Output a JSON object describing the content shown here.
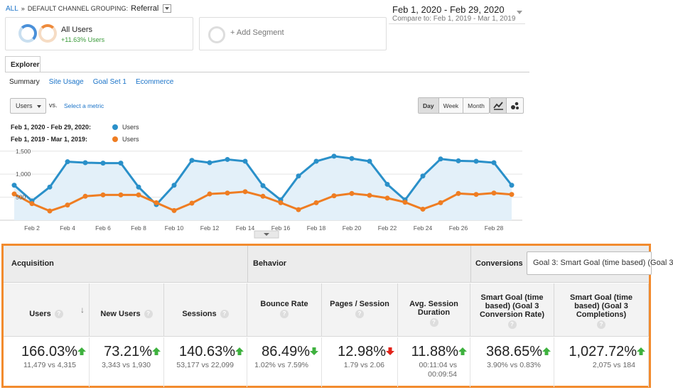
{
  "breadcrumb": {
    "root": "ALL",
    "separator": "»",
    "grouping": "DEFAULT CHANNEL GROUPING:",
    "value": "Referral"
  },
  "date_range": {
    "main": "Feb 1, 2020 - Feb 29, 2020",
    "compare": "Compare to: Feb 1, 2019 - Mar 1, 2019"
  },
  "segments": {
    "all_users": {
      "name": "All Users",
      "delta": "+11.63% Users"
    },
    "add_segment": "+ Add Segment"
  },
  "tabs": {
    "explorer": "Explorer"
  },
  "subnav": {
    "summary": "Summary",
    "site_usage": "Site Usage",
    "goal_set": "Goal Set 1",
    "ecommerce": "Ecommerce"
  },
  "chart_controls": {
    "metric": "Users",
    "vs": "vs.",
    "select_metric": "Select a metric",
    "period_buttons": [
      "Day",
      "Week",
      "Month"
    ],
    "selected_period": "Day"
  },
  "legend": [
    {
      "date": "Feb 1, 2020 - Feb 29, 2020:",
      "name": "Users",
      "color": "#2a90c9"
    },
    {
      "date": "Feb 1, 2019 - Mar 1, 2019:",
      "name": "Users",
      "color": "#ef7d22"
    }
  ],
  "chart_data": {
    "type": "line",
    "ylim": [
      0,
      1620
    ],
    "y_ticks": [
      "1,500",
      "1,000",
      "500"
    ],
    "y_tick_values": [
      1500,
      1000,
      500
    ],
    "x_tick_labels": [
      "Feb 2",
      "Feb 4",
      "Feb 6",
      "Feb 8",
      "Feb 10",
      "Feb 12",
      "Feb 14",
      "Feb 16",
      "Feb 18",
      "Feb 20",
      "Feb 22",
      "Feb 24",
      "Feb 26",
      "Feb 28"
    ],
    "x_tick_days": [
      2,
      4,
      6,
      8,
      10,
      12,
      14,
      16,
      18,
      20,
      22,
      24,
      26,
      28
    ],
    "x": [
      1,
      2,
      3,
      4,
      5,
      6,
      7,
      8,
      9,
      10,
      11,
      12,
      13,
      14,
      15,
      16,
      17,
      18,
      19,
      20,
      21,
      22,
      23,
      24,
      25,
      26,
      27,
      28,
      29
    ],
    "series": [
      {
        "name": "Users",
        "color": "#2a90c9",
        "area": true,
        "values": [
          760,
          420,
          720,
          1270,
          1250,
          1240,
          1240,
          720,
          340,
          760,
          1300,
          1250,
          1320,
          1280,
          750,
          440,
          960,
          1280,
          1390,
          1340,
          1280,
          780,
          440,
          960,
          1330,
          1290,
          1280,
          1250,
          760
        ]
      },
      {
        "name": "Users",
        "color": "#ef7d22",
        "area": false,
        "values": [
          570,
          360,
          200,
          330,
          520,
          550,
          550,
          550,
          380,
          210,
          370,
          570,
          590,
          620,
          520,
          380,
          230,
          380,
          530,
          580,
          540,
          480,
          390,
          240,
          380,
          580,
          560,
          590,
          560
        ]
      }
    ]
  },
  "table": {
    "groups": {
      "acquisition": "Acquisition",
      "behavior": "Behavior",
      "conversions": "Conversions"
    },
    "goal_select": "Goal 3: Smart Goal (time based) (Goal 3",
    "help_icon": "?",
    "sort_icon": "↓",
    "columns": [
      {
        "label": "Users",
        "pct": "166.03%",
        "dir": "up",
        "sub1": "11,479 vs 4,315",
        "sub2": ""
      },
      {
        "label": "New Users",
        "pct": "73.21%",
        "dir": "up",
        "sub1": "3,343 vs 1,930",
        "sub2": ""
      },
      {
        "label": "Sessions",
        "pct": "140.63%",
        "dir": "up",
        "sub1": "53,177 vs 22,099",
        "sub2": ""
      },
      {
        "label": "Bounce Rate",
        "pct": "86.49%",
        "dir": "down-good",
        "sub1": "1.02% vs 7.59%",
        "sub2": ""
      },
      {
        "label": "Pages / Session",
        "pct": "12.98%",
        "dir": "down-bad",
        "sub1": "1.79 vs 2.06",
        "sub2": ""
      },
      {
        "label": "Avg. Session Duration",
        "pct": "11.88%",
        "dir": "up",
        "sub1": "00:11:04 vs",
        "sub2": "00:09:54"
      },
      {
        "label": "Smart Goal (time based) (Goal 3 Conversion Rate)",
        "pct": "368.65%",
        "dir": "up",
        "sub1": "3.90% vs 0.83%",
        "sub2": ""
      },
      {
        "label": "Smart Goal (time based) (Goal 3 Completions)",
        "pct": "1,027.72%",
        "dir": "up",
        "sub1": "2,075 vs 184",
        "sub2": ""
      }
    ]
  },
  "colors": {
    "up": "#3eb13e",
    "down_good": "#3eb13e",
    "down_bad": "#e2231a",
    "highlight_border": "#f28b2e"
  }
}
